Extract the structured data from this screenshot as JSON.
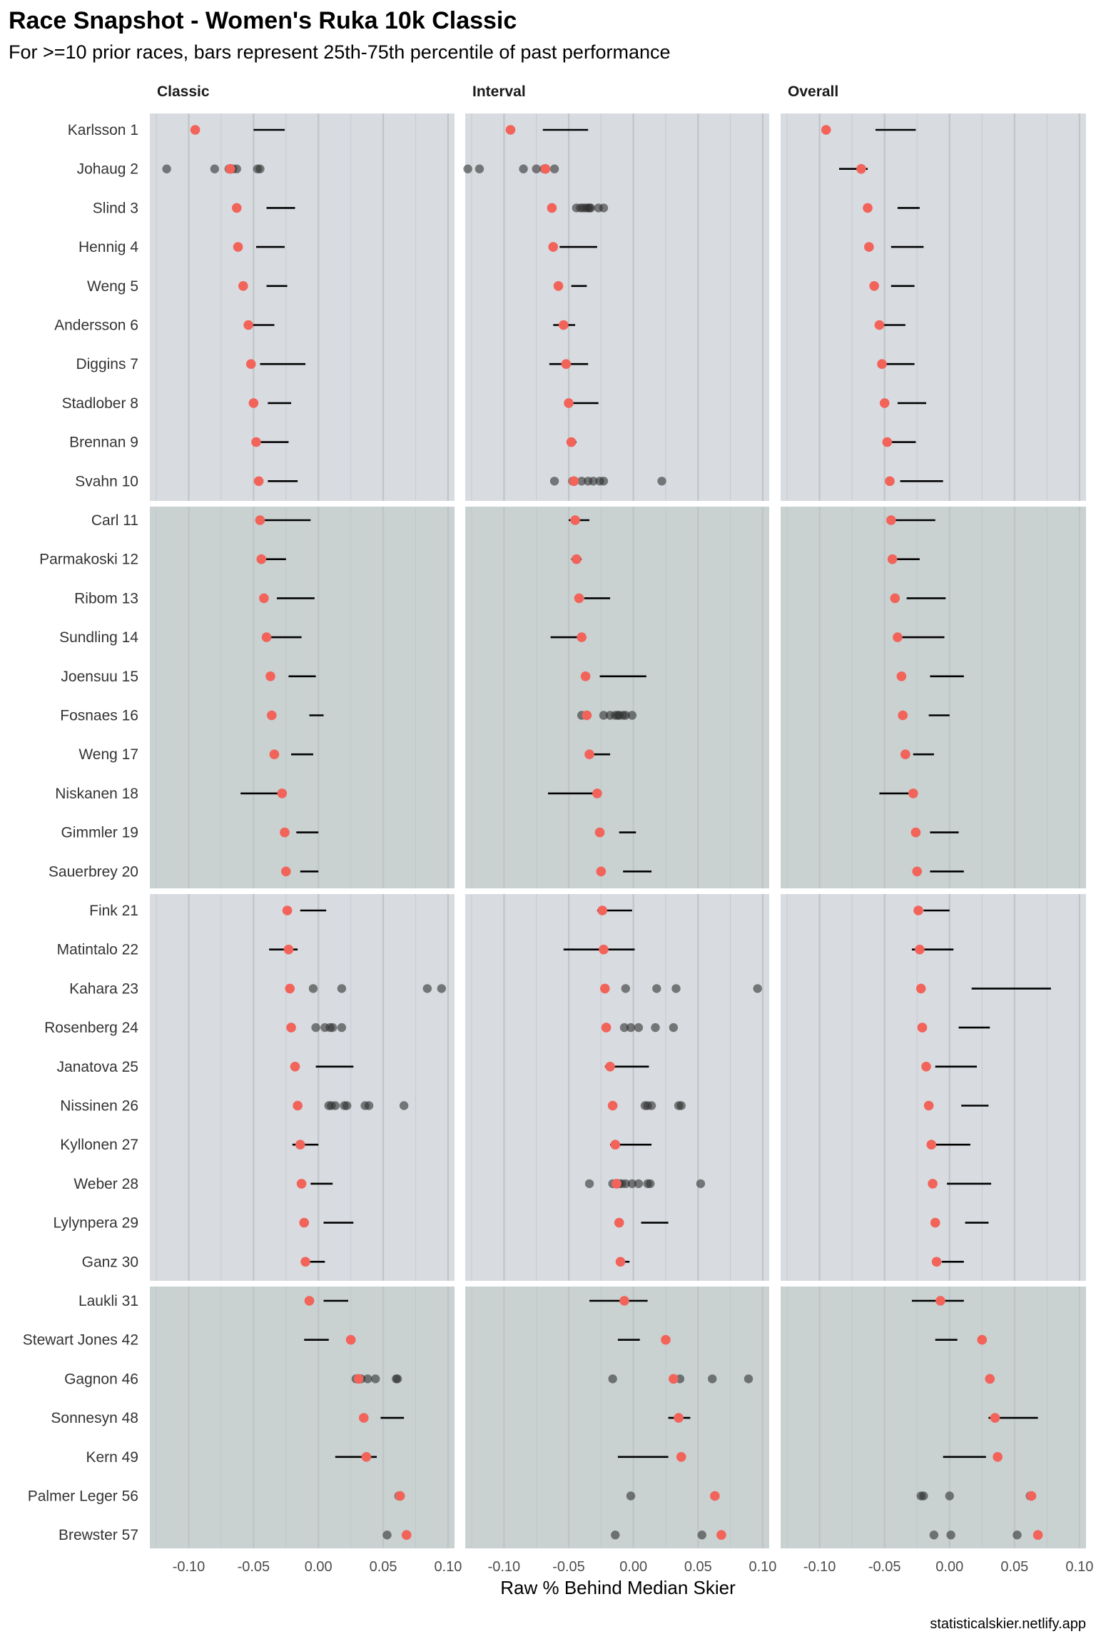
{
  "chart_data": {
    "type": "scatter",
    "title": "Race Snapshot -  Women's Ruka 10k Classic",
    "subtitle": "For >=10 prior races, bars represent 25th-75th percentile of past performance",
    "xlabel": "Raw % Behind Median Skier",
    "caption": "statisticalskier.netlify.app",
    "xlim": [
      -0.13,
      0.105
    ],
    "x_ticks": [
      -0.1,
      -0.05,
      0.0,
      0.05,
      0.1
    ],
    "x_tick_labels": [
      "-0.10",
      "-0.05",
      "0.00",
      "0.05",
      "0.10"
    ],
    "panels": [
      "Classic",
      "Interval",
      "Overall"
    ],
    "skiers": [
      "Karlsson 1",
      "Johaug 2",
      "Slind 3",
      "Hennig 4",
      "Weng 5",
      "Andersson 6",
      "Diggins 7",
      "Stadlober 8",
      "Brennan 9",
      "Svahn 10",
      "Carl 11",
      "Parmakoski 12",
      "Ribom 13",
      "Sundling 14",
      "Joensuu 15",
      "Fosnaes 16",
      "Weng 17",
      "Niskanen 18",
      "Gimmler 19",
      "Sauerbrey 20",
      "Fink 21",
      "Matintalo 22",
      "Kahara 23",
      "Rosenberg 24",
      "Janatova 25",
      "Nissinen 26",
      "Kyllonen 27",
      "Weber 28",
      "Lylynpera 29",
      "Ganz 30",
      "Laukli 31",
      "Stewart Jones 42",
      "Gagnon 46",
      "Sonnesyn 48",
      "Kern 49",
      "Palmer Leger 56",
      "Brewster 57"
    ],
    "groups": [
      {
        "from": 0,
        "to": 9
      },
      {
        "from": 10,
        "to": 19
      },
      {
        "from": 20,
        "to": 29
      },
      {
        "from": 30,
        "to": 36
      }
    ],
    "predicted": [
      -0.095,
      -0.068,
      -0.063,
      -0.062,
      -0.058,
      -0.054,
      -0.052,
      -0.05,
      -0.048,
      -0.046,
      -0.045,
      -0.044,
      -0.042,
      -0.04,
      -0.037,
      -0.036,
      -0.034,
      -0.028,
      -0.026,
      -0.025,
      -0.024,
      -0.023,
      -0.022,
      -0.021,
      -0.018,
      -0.016,
      -0.014,
      -0.013,
      -0.011,
      -0.01,
      -0.007,
      0.025,
      0.031,
      0.035,
      0.037,
      0.063,
      0.068
    ],
    "colors": {
      "predicted": "#F2635A",
      "past": "#303030",
      "bar": "#000000",
      "panel_a": "#D8DBE0",
      "panel_b": "#C9D1D1",
      "grid": "#BEC3C6"
    },
    "series": [
      {
        "name": "Classic",
        "iqr": [
          [
            -0.05,
            -0.026
          ],
          [
            null,
            null
          ],
          [
            -0.04,
            -0.018
          ],
          [
            -0.048,
            -0.026
          ],
          [
            -0.04,
            -0.024
          ],
          [
            -0.052,
            -0.034
          ],
          [
            -0.045,
            -0.01
          ],
          [
            -0.039,
            -0.021
          ],
          [
            -0.047,
            -0.023
          ],
          [
            -0.039,
            -0.016
          ],
          [
            -0.043,
            -0.006
          ],
          [
            -0.043,
            -0.025
          ],
          [
            -0.032,
            -0.003
          ],
          [
            -0.04,
            -0.013
          ],
          [
            -0.023,
            -0.002
          ],
          [
            -0.007,
            0.004
          ],
          [
            -0.021,
            -0.004
          ],
          [
            -0.06,
            -0.031
          ],
          [
            -0.017,
            0.0
          ],
          [
            -0.014,
            0.0
          ],
          [
            -0.014,
            0.006
          ],
          [
            -0.038,
            -0.016
          ],
          [
            null,
            null
          ],
          [
            null,
            null
          ],
          [
            -0.002,
            0.027
          ],
          [
            null,
            null
          ],
          [
            -0.02,
            0.0
          ],
          [
            -0.006,
            0.011
          ],
          [
            0.004,
            0.027
          ],
          [
            -0.007,
            0.005
          ],
          [
            0.004,
            0.023
          ],
          [
            -0.011,
            0.008
          ],
          [
            null,
            null
          ],
          [
            0.048,
            0.066
          ],
          [
            0.013,
            0.045
          ],
          [
            null,
            null
          ],
          [
            null,
            null
          ]
        ],
        "past": [
          [],
          [
            -0.117,
            -0.08,
            -0.066,
            -0.069,
            -0.063,
            -0.047,
            -0.045
          ],
          [],
          [],
          [],
          [],
          [],
          [],
          [],
          [],
          [],
          [],
          [],
          [],
          [],
          [],
          [],
          [],
          [],
          [],
          [],
          [],
          [
            -0.004,
            0.018,
            0.084,
            0.095
          ],
          [
            -0.002,
            0.005,
            0.009,
            0.011,
            0.018
          ],
          [],
          [
            0.008,
            0.01,
            0.013,
            0.02,
            0.022,
            0.036,
            0.039,
            0.066
          ],
          [],
          [],
          [],
          [],
          [],
          [],
          [
            0.029,
            0.033,
            0.038,
            0.044,
            0.06,
            0.061
          ],
          [],
          [],
          [
            0.062
          ],
          [
            0.053
          ]
        ]
      },
      {
        "name": "Interval",
        "iqr": [
          [
            -0.07,
            -0.035
          ],
          [
            null,
            null
          ],
          [
            null,
            null
          ],
          [
            -0.057,
            -0.028
          ],
          [
            -0.048,
            -0.036
          ],
          [
            -0.062,
            -0.045
          ],
          [
            -0.065,
            -0.035
          ],
          [
            -0.047,
            -0.027
          ],
          [
            -0.05,
            -0.044
          ],
          [
            null,
            null
          ],
          [
            -0.05,
            -0.034
          ],
          [
            -0.048,
            -0.04
          ],
          [
            -0.038,
            -0.018
          ],
          [
            -0.064,
            -0.038
          ],
          [
            -0.026,
            0.01
          ],
          [
            null,
            null
          ],
          [
            -0.031,
            -0.018
          ],
          [
            -0.066,
            -0.026
          ],
          [
            -0.011,
            0.002
          ],
          [
            -0.008,
            0.014
          ],
          [
            -0.028,
            -0.001
          ],
          [
            -0.054,
            0.001
          ],
          [
            null,
            null
          ],
          [
            null,
            null
          ],
          [
            -0.022,
            0.012
          ],
          [
            null,
            null
          ],
          [
            -0.018,
            0.014
          ],
          [
            null,
            null
          ],
          [
            0.006,
            0.027
          ],
          [
            -0.01,
            -0.003
          ],
          [
            -0.034,
            0.011
          ],
          [
            -0.012,
            0.005
          ],
          [
            null,
            null
          ],
          [
            0.027,
            0.044
          ],
          [
            -0.012,
            0.027
          ],
          [
            null,
            null
          ],
          [
            null,
            null
          ]
        ],
        "past": [
          [],
          [
            -0.128,
            -0.119,
            -0.085,
            -0.075,
            -0.069,
            -0.061
          ],
          [
            -0.044,
            -0.041,
            -0.039,
            -0.037,
            -0.035,
            -0.034,
            -0.033,
            -0.027,
            -0.023
          ],
          [],
          [],
          [],
          [],
          [],
          [],
          [
            -0.061,
            -0.047,
            -0.04,
            -0.035,
            -0.031,
            -0.026,
            -0.023,
            0.022
          ],
          [],
          [],
          [],
          [],
          [],
          [
            -0.04,
            -0.023,
            -0.018,
            -0.014,
            -0.012,
            -0.011,
            -0.008,
            -0.006,
            -0.001
          ],
          [],
          [],
          [],
          [],
          [],
          [],
          [
            -0.006,
            0.018,
            0.033,
            0.096
          ],
          [
            -0.007,
            -0.002,
            0.004,
            0.017,
            0.031
          ],
          [],
          [
            0.009,
            0.011,
            0.014,
            0.035,
            0.037
          ],
          [],
          [
            -0.034,
            -0.016,
            -0.013,
            -0.011,
            -0.009,
            -0.006,
            -0.001,
            0.004,
            0.011,
            0.013,
            0.052
          ],
          [],
          [],
          [],
          [],
          [
            -0.016,
            0.036,
            0.061,
            0.089
          ],
          [],
          [],
          [
            -0.002
          ],
          [
            -0.014,
            0.053
          ]
        ]
      },
      {
        "name": "Overall",
        "iqr": [
          [
            -0.057,
            -0.026
          ],
          [
            -0.085,
            -0.063
          ],
          [
            -0.04,
            -0.023
          ],
          [
            -0.045,
            -0.02
          ],
          [
            -0.045,
            -0.027
          ],
          [
            -0.056,
            -0.034
          ],
          [
            -0.053,
            -0.027
          ],
          [
            -0.04,
            -0.018
          ],
          [
            -0.046,
            -0.026
          ],
          [
            -0.038,
            -0.005
          ],
          [
            -0.043,
            -0.011
          ],
          [
            -0.041,
            -0.023
          ],
          [
            -0.033,
            -0.003
          ],
          [
            -0.042,
            -0.004
          ],
          [
            -0.015,
            0.011
          ],
          [
            -0.016,
            0.0
          ],
          [
            -0.028,
            -0.012
          ],
          [
            -0.054,
            -0.029
          ],
          [
            -0.015,
            0.007
          ],
          [
            -0.015,
            0.011
          ],
          [
            -0.02,
            0.0
          ],
          [
            -0.029,
            0.003
          ],
          [
            0.017,
            0.078
          ],
          [
            0.007,
            0.031
          ],
          [
            -0.011,
            0.021
          ],
          [
            0.009,
            0.03
          ],
          [
            -0.016,
            0.016
          ],
          [
            -0.002,
            0.032
          ],
          [
            0.012,
            0.03
          ],
          [
            -0.006,
            0.011
          ],
          [
            -0.029,
            0.011
          ],
          [
            -0.011,
            0.006
          ],
          [
            null,
            null
          ],
          [
            0.03,
            0.068
          ],
          [
            -0.005,
            0.028
          ],
          [
            null,
            null
          ],
          [
            null,
            null
          ]
        ],
        "past": [
          [],
          [],
          [],
          [],
          [],
          [],
          [],
          [],
          [],
          [],
          [],
          [],
          [],
          [],
          [],
          [],
          [],
          [],
          [],
          [],
          [],
          [],
          [],
          [],
          [],
          [],
          [],
          [],
          [],
          [],
          [],
          [],
          [],
          [],
          [],
          [
            -0.022,
            -0.02,
            0.0,
            0.062
          ],
          [
            -0.012,
            0.001,
            0.052
          ]
        ]
      }
    ]
  }
}
